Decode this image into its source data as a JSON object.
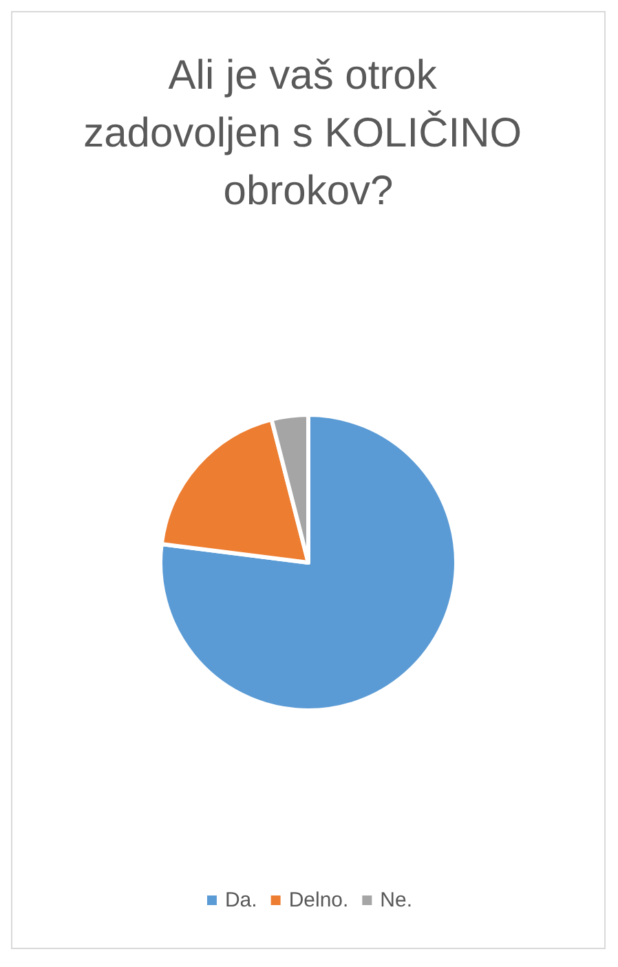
{
  "chart_data": {
    "type": "pie",
    "title": "Ali je vaš otrok zadovoljen s KOLIČINO obrokov?",
    "categories": [
      "Da.",
      "Delno.",
      "Ne."
    ],
    "values": [
      77,
      19,
      4
    ],
    "colors": [
      "#5b9bd5",
      "#ed7d31",
      "#a5a5a5"
    ],
    "legend": "bottom"
  }
}
